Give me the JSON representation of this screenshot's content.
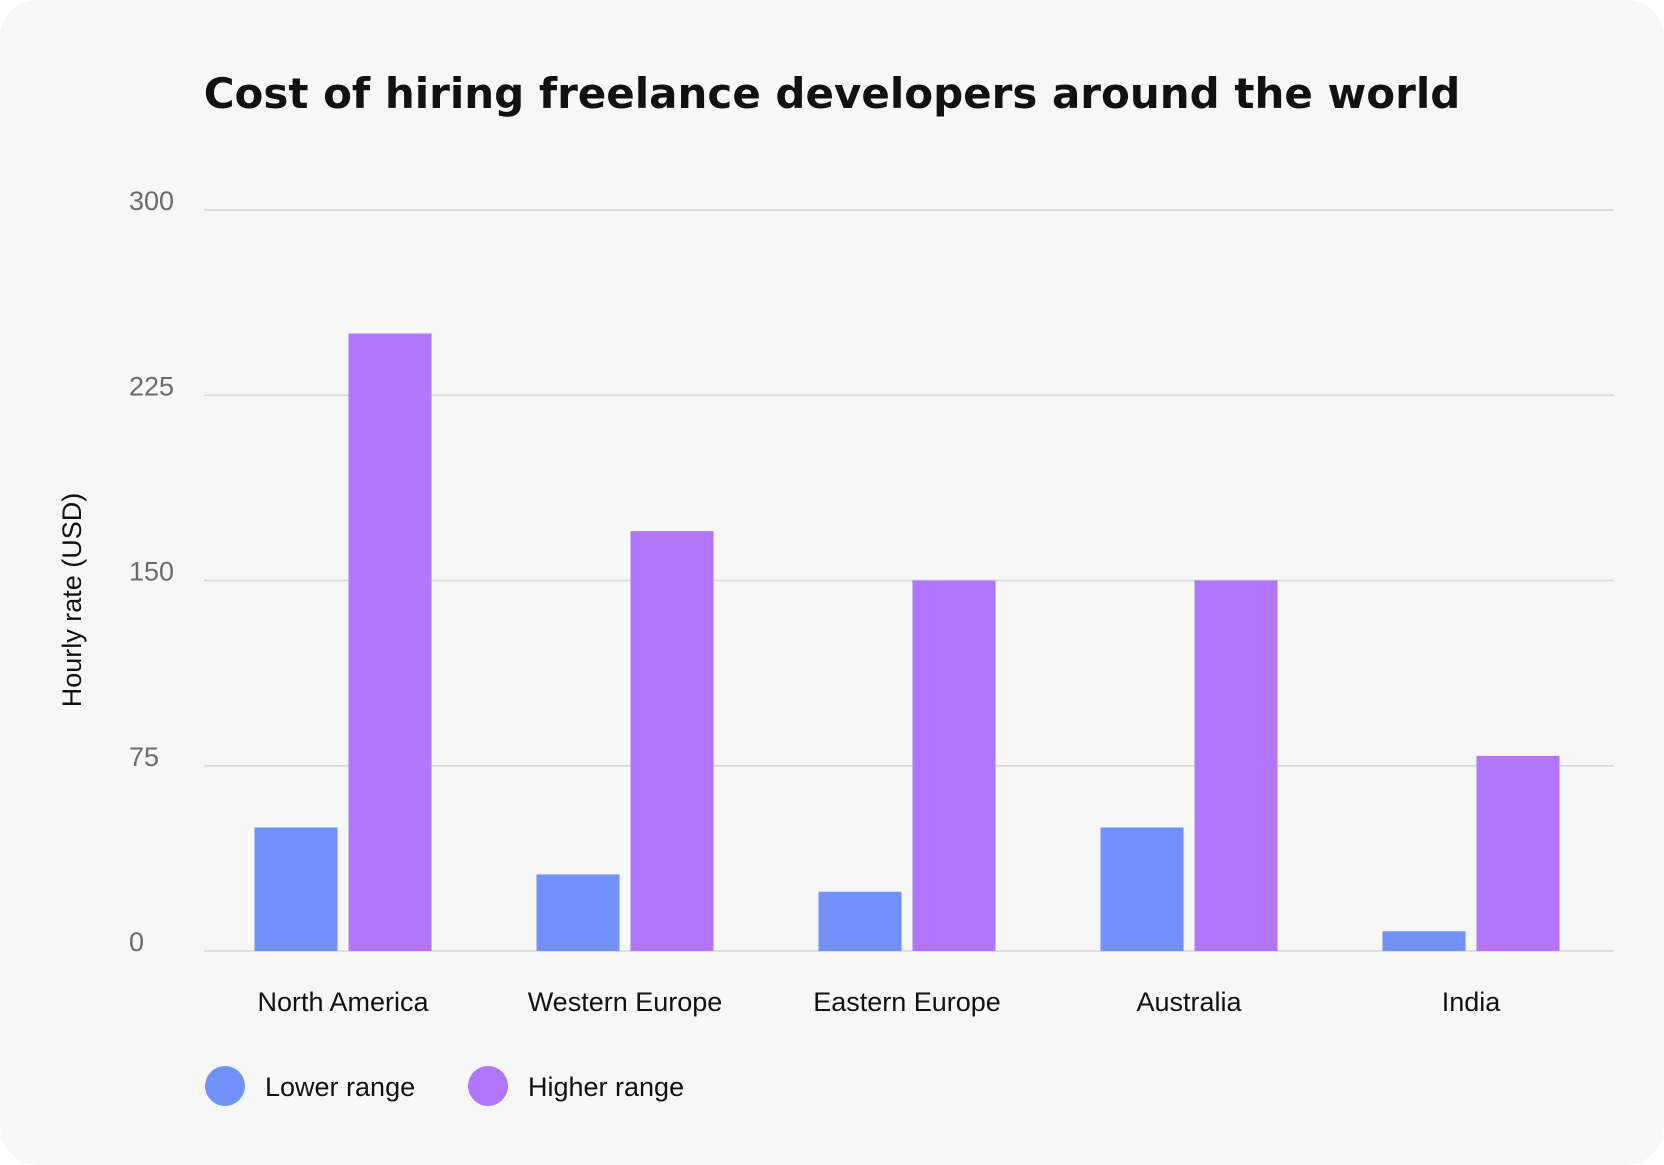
{
  "chart_data": {
    "type": "bar",
    "title": "Cost of hiring freelance developers around the world",
    "xlabel": "",
    "ylabel": "Hourly rate (USD)",
    "categories": [
      "North America",
      "Western Europe",
      "Eastern Europe",
      "Australia",
      "India"
    ],
    "series": [
      {
        "name": "Lower range",
        "color": "#7192fd",
        "values": [
          50,
          31,
          24,
          50,
          8
        ]
      },
      {
        "name": "Higher range",
        "color": "#b175fe",
        "values": [
          250,
          170,
          150,
          150,
          79
        ]
      }
    ],
    "ylim": [
      0,
      300
    ],
    "yticks": [
      "0",
      "75",
      "150",
      "225",
      "300"
    ],
    "grid": true,
    "legend_position": "bottom-left"
  }
}
